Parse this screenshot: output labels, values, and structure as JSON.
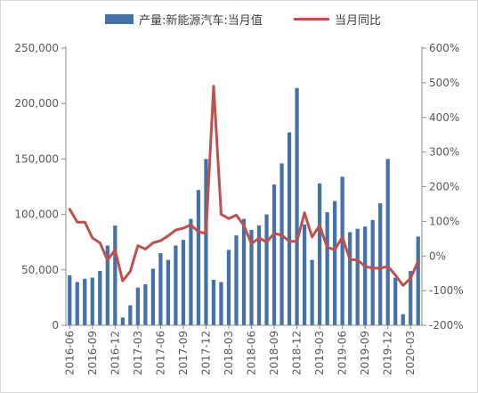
{
  "chart_data": {
    "type": "bar+line",
    "legend": {
      "bar_label": "产量:新能源汽车:当月值",
      "line_label": "当月同比",
      "position": "top"
    },
    "left_axis": {
      "min": 0,
      "max": 250000,
      "step": 50000,
      "ticks": [
        "0",
        "50,000",
        "100,000",
        "150,000",
        "200,000",
        "250,000"
      ]
    },
    "right_axis": {
      "min": -200,
      "max": 600,
      "step": 100,
      "ticks": [
        "-200%",
        "-100%",
        "0%",
        "100%",
        "200%",
        "300%",
        "400%",
        "500%",
        "600%"
      ]
    },
    "x_labels": [
      "2016-06",
      "2016-09",
      "2016-12",
      "2017-03",
      "2017-06",
      "2017-09",
      "2017-12",
      "2018-03",
      "2018-06",
      "2018-09",
      "2018-12",
      "2019-03",
      "2019-06",
      "2019-09",
      "2019-12",
      "2020-03"
    ],
    "x_label_every": 3,
    "months": [
      "2016-06",
      "2016-07",
      "2016-08",
      "2016-09",
      "2016-10",
      "2016-11",
      "2016-12",
      "2017-01",
      "2017-02",
      "2017-03",
      "2017-04",
      "2017-05",
      "2017-06",
      "2017-07",
      "2017-08",
      "2017-09",
      "2017-10",
      "2017-11",
      "2017-12",
      "2018-01",
      "2018-02",
      "2018-03",
      "2018-04",
      "2018-05",
      "2018-06",
      "2018-07",
      "2018-08",
      "2018-09",
      "2018-10",
      "2018-11",
      "2018-12",
      "2019-01",
      "2019-02",
      "2019-03",
      "2019-04",
      "2019-05",
      "2019-06",
      "2019-07",
      "2019-08",
      "2019-09",
      "2019-10",
      "2019-11",
      "2019-12",
      "2020-01",
      "2020-02",
      "2020-03",
      "2020-04"
    ],
    "series": [
      {
        "name": "产量:新能源汽车:当月值",
        "type": "bar",
        "axis": "left",
        "color": "#4472a8",
        "values": [
          45000,
          39000,
          42000,
          43000,
          49000,
          72000,
          90000,
          7000,
          18000,
          34000,
          37000,
          51000,
          65000,
          59000,
          72000,
          77000,
          96000,
          122000,
          150000,
          41000,
          39000,
          68000,
          81000,
          96000,
          86000,
          90000,
          100000,
          127000,
          146000,
          174000,
          214000,
          91000,
          59000,
          128000,
          102000,
          112000,
          134000,
          84000,
          87000,
          89000,
          95000,
          110000,
          150000,
          43000,
          10000,
          49000,
          80000
        ]
      },
      {
        "name": "当月同比",
        "type": "line",
        "axis": "right",
        "color": "#c0504d",
        "values": [
          135,
          98,
          98,
          52,
          38,
          -12,
          18,
          -72,
          -45,
          30,
          20,
          38,
          44,
          58,
          75,
          80,
          90,
          70,
          65,
          490,
          120,
          108,
          118,
          88,
          35,
          52,
          40,
          65,
          60,
          42,
          42,
          125,
          55,
          88,
          25,
          18,
          55,
          -10,
          -12,
          -30,
          -35,
          -35,
          -30,
          -55,
          -85,
          -65,
          -15
        ]
      }
    ]
  }
}
